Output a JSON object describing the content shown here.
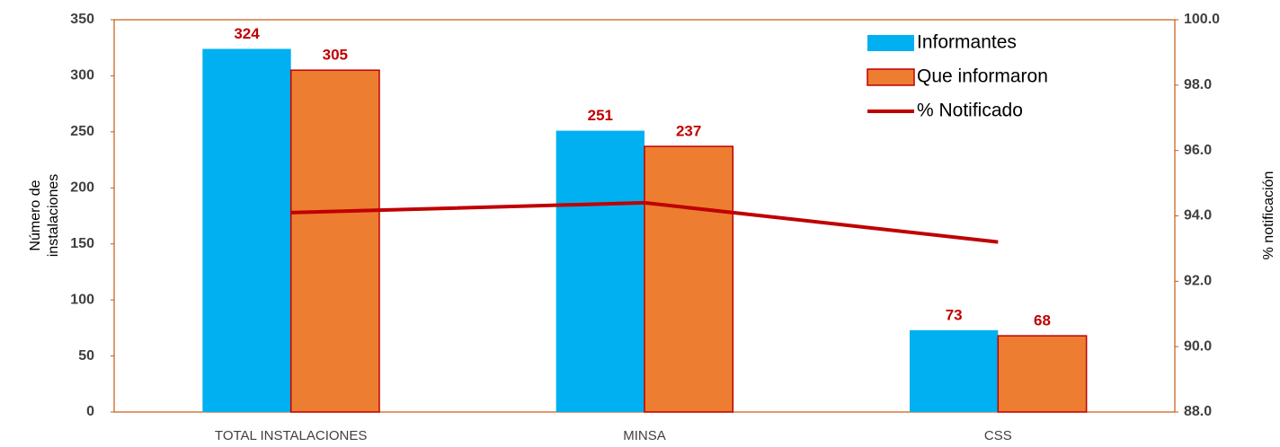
{
  "chart_data": {
    "type": "bar",
    "categories": [
      "TOTAL INSTALACIONES",
      "MINSA",
      "CSS"
    ],
    "series": [
      {
        "name": "Informantes",
        "color": "#00b0f0",
        "values": [
          324,
          251,
          73
        ]
      },
      {
        "name": "Que informaron",
        "color": "#ed7d31",
        "values": [
          305,
          237,
          68
        ]
      },
      {
        "name": "% Notificado",
        "color": "#c00000",
        "type": "line",
        "axis": "y2",
        "values": [
          94.1,
          94.4,
          93.2
        ]
      }
    ],
    "ylabel": [
      "Número de",
      "instalaciones"
    ],
    "y2label": "% notificación",
    "ylim": [
      0,
      350
    ],
    "yticks": [
      0,
      50,
      100,
      150,
      200,
      250,
      300,
      350
    ],
    "y2lim": [
      88,
      100
    ],
    "y2ticks": [
      {
        "value": 88,
        "label": "88.0"
      },
      {
        "value": 90,
        "label": "90.0"
      },
      {
        "value": 92,
        "label": "92.0"
      },
      {
        "value": 94,
        "label": "94.0"
      },
      {
        "value": 96,
        "label": "96.0"
      },
      {
        "value": 98,
        "label": "98.0"
      },
      {
        "value": 100,
        "label": "100.0"
      }
    ],
    "grid": false,
    "legend": "upper right",
    "frame_color": "#c55a11"
  }
}
